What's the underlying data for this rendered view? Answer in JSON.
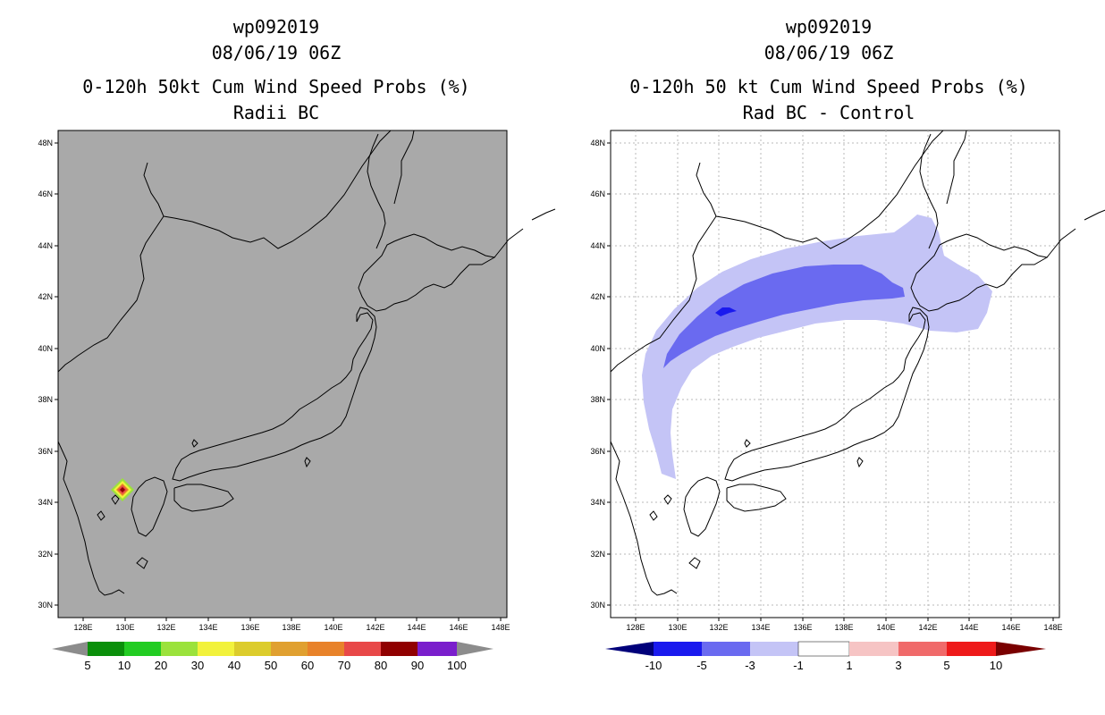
{
  "panel_left": {
    "storm_id": "wp092019",
    "datetime": "08/06/19 06Z",
    "title": "0-120h 50kt Cum Wind Speed Probs (%)",
    "subtitle": "Radii BC",
    "colorbar": {
      "labels": [
        "5",
        "10",
        "20",
        "30",
        "40",
        "50",
        "60",
        "70",
        "80",
        "90",
        "100"
      ],
      "colors": [
        "#8c8c8c",
        "#0a8f0a",
        "#22cc22",
        "#9be23c",
        "#f2f23c",
        "#dccc2c",
        "#e0a030",
        "#e8822a",
        "#e84848",
        "#900000",
        "#7a1ecc",
        "#8c8c8c"
      ]
    }
  },
  "panel_right": {
    "storm_id": "wp092019",
    "datetime": "08/06/19 06Z",
    "title": "0-120h 50 kt Cum Wind Speed Probs (%)",
    "subtitle": "Rad BC - Control",
    "colorbar": {
      "labels": [
        "-10",
        "-5",
        "-3",
        "-1",
        "1",
        "3",
        "5",
        "10"
      ],
      "colors": [
        "#00007a",
        "#1a1aee",
        "#6a6af0",
        "#c4c4f6",
        "#ffffff",
        "#f6c4c4",
        "#f06a6a",
        "#ee1a1a",
        "#7a0000"
      ]
    }
  },
  "axes": {
    "lat_labels": [
      "48N",
      "46N",
      "44N",
      "42N",
      "40N",
      "38N",
      "36N",
      "34N",
      "32N",
      "30N"
    ],
    "lon_labels": [
      "128E",
      "130E",
      "132E",
      "134E",
      "136E",
      "138E",
      "140E",
      "142E",
      "144E",
      "146E",
      "148E"
    ]
  },
  "colors": {
    "land_sea_bg_left": "#a9a9a9",
    "outer_contour": "#c4c4f6",
    "middle_contour": "#6a6af0",
    "inner_contour": "#1a1aee"
  }
}
